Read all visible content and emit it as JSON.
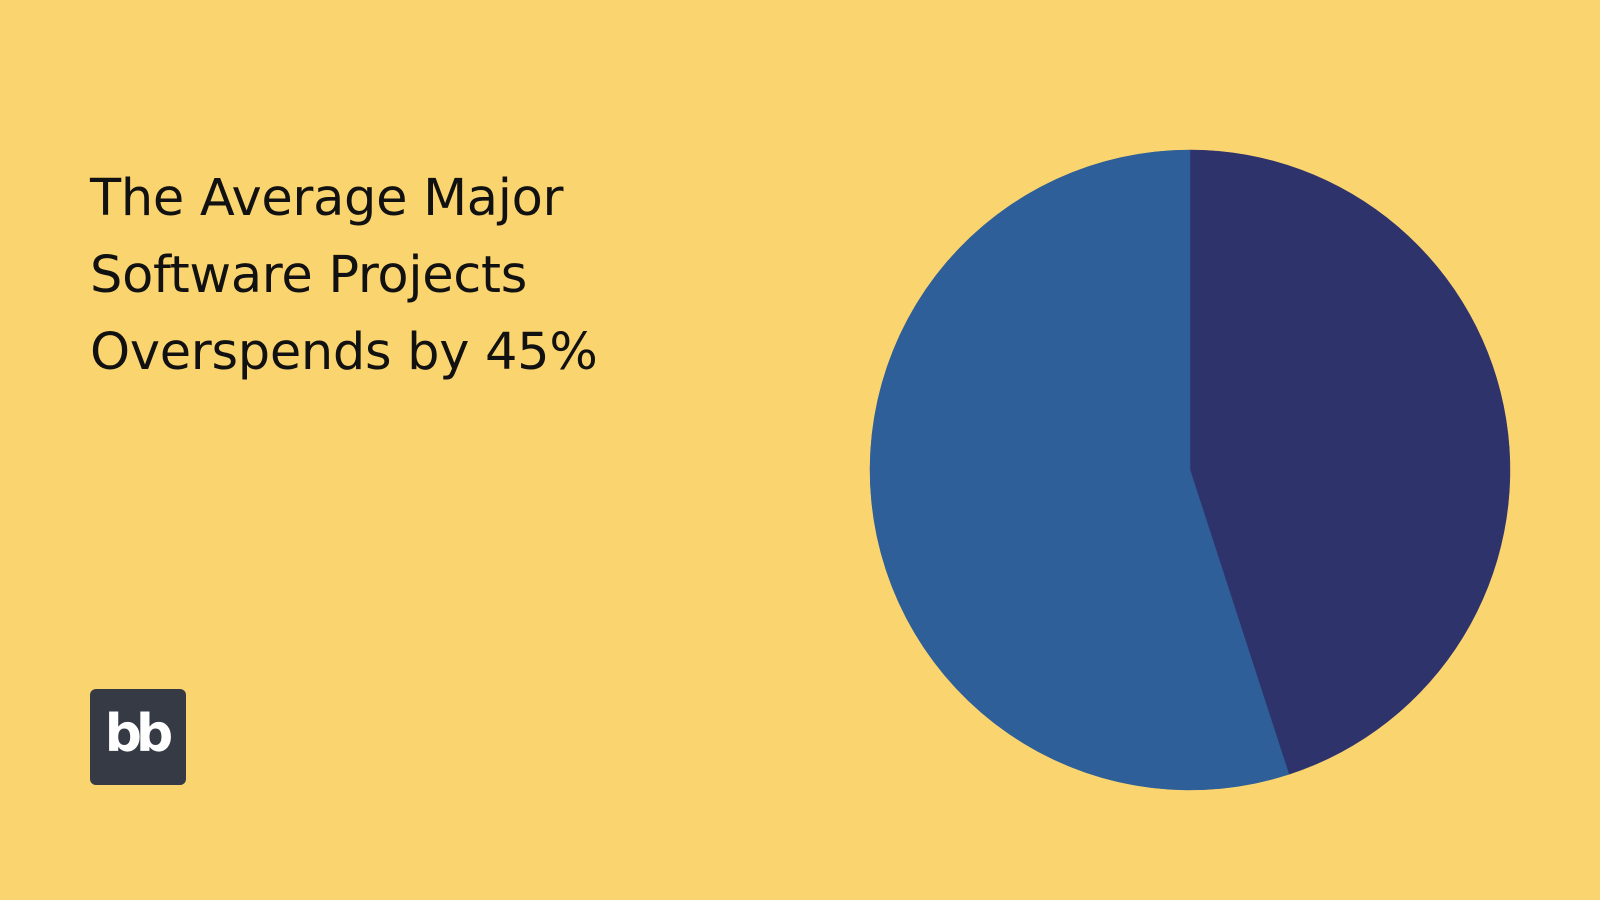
{
  "page": {
    "background": "#FAD46E"
  },
  "title": {
    "lines": [
      "The Average Major",
      "Software Projects",
      "Overspends by 45%"
    ]
  },
  "logo": {
    "text": "bb",
    "background": "#353A44"
  },
  "chart_data": {
    "type": "pie",
    "title": "",
    "slices": [
      {
        "value": 45,
        "color": "#2F336B"
      },
      {
        "value": 55,
        "color": "#2F5F98"
      }
    ],
    "start_angle": "12 o'clock",
    "direction": "clockwise",
    "legend": "none"
  }
}
